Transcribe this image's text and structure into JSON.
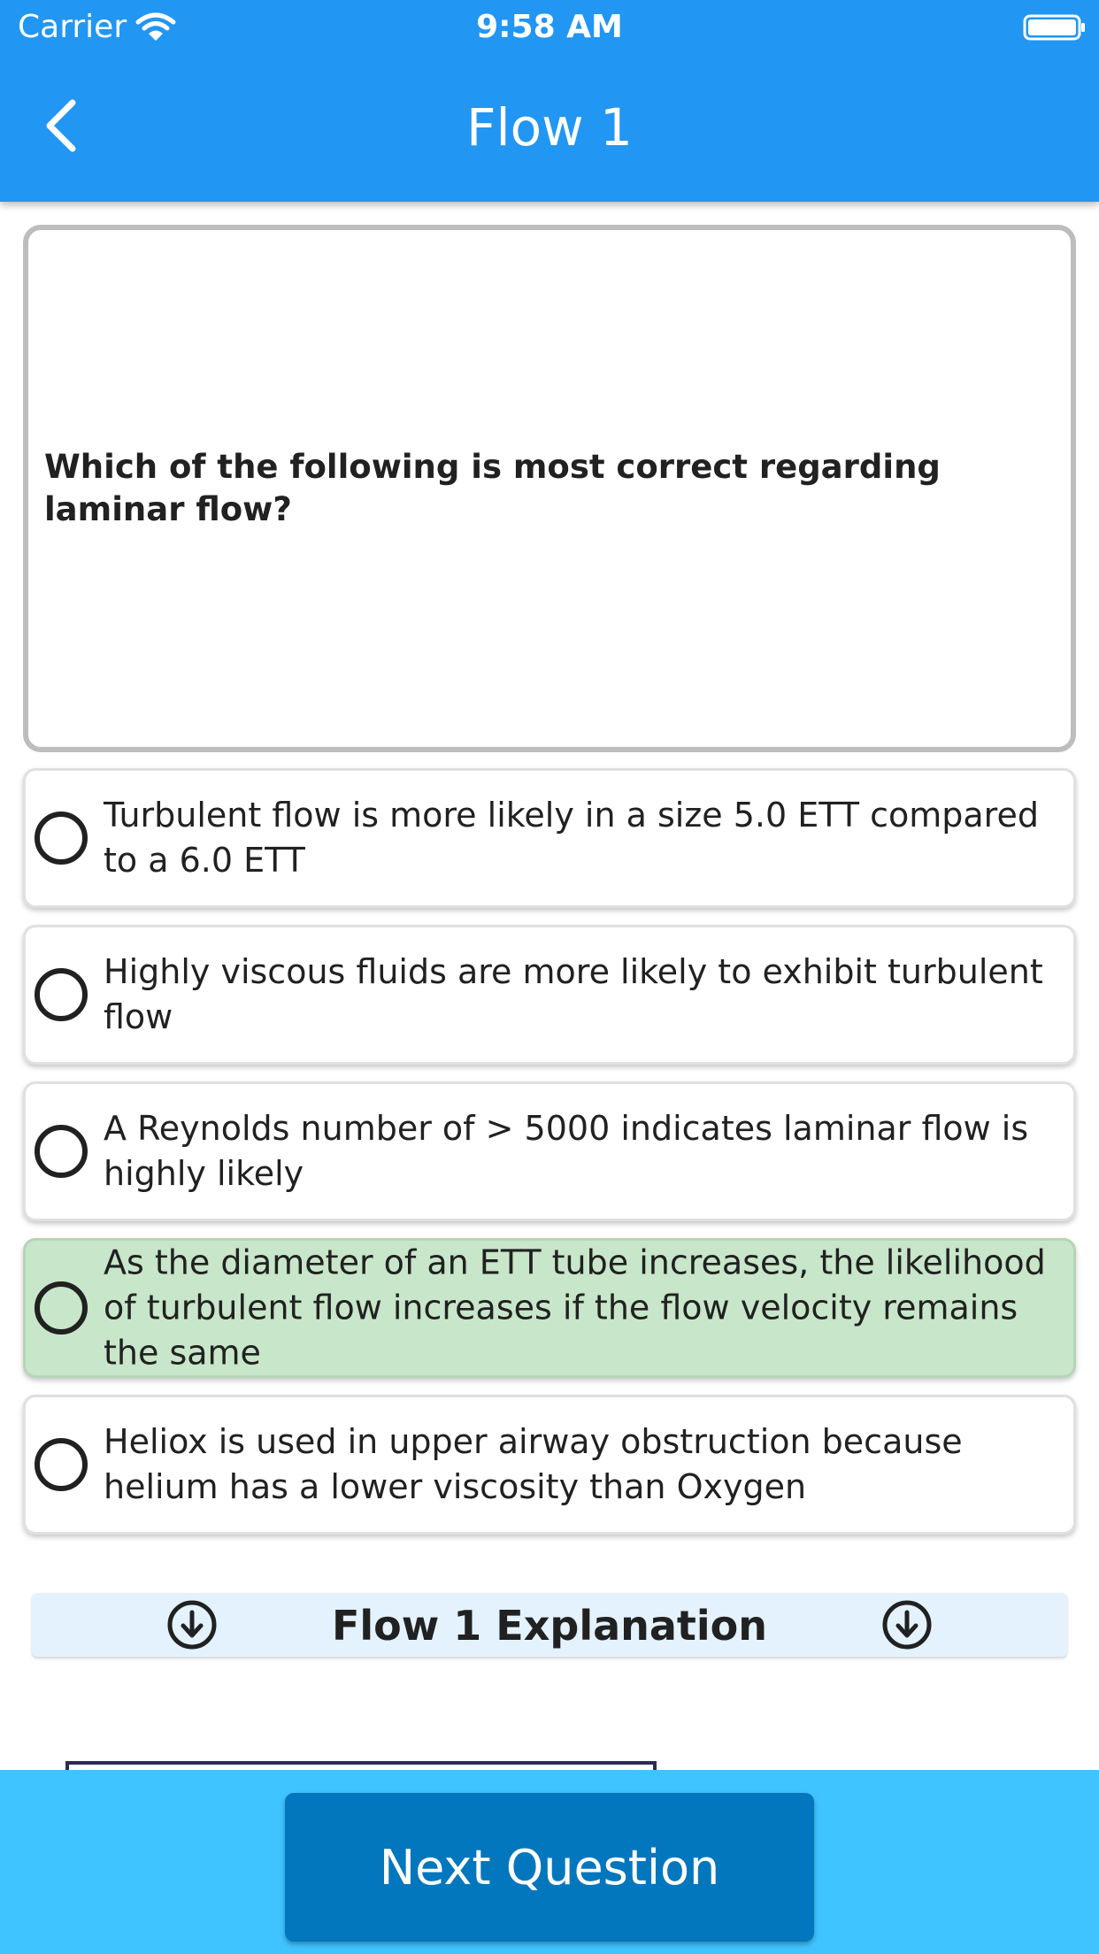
{
  "status_bar": {
    "carrier": "Carrier",
    "time": "9:58 AM"
  },
  "header": {
    "title": "Flow 1",
    "background_color": "#2196F3"
  },
  "question": {
    "text": "Which of the following is most correct regarding laminar flow?"
  },
  "options": [
    {
      "text": "Turbulent flow is more likely in a size 5.0 ETT compared to a 6.0 ETT",
      "highlighted": false
    },
    {
      "text": "Highly viscous fluids are more likely to exhibit turbulent flow",
      "highlighted": false
    },
    {
      "text": "A Reynolds number of > 5000 indicates laminar flow is highly likely",
      "highlighted": false
    },
    {
      "text": "As the diameter of an ETT tube increases, the likelihood of turbulent flow increases if the flow velocity remains the same",
      "highlighted": true
    },
    {
      "text": "Heliox is used in upper airway obstruction because helium has a lower viscosity than Oxygen",
      "highlighted": false
    }
  ],
  "explanation": {
    "title": "Flow 1 Explanation"
  },
  "footer": {
    "next_label": "Next Question",
    "bar_color": "#40C4FF",
    "button_color": "#0277BD"
  },
  "colors": {
    "highlight": "#C8E6C9",
    "explanation_bg": "#E3F2FD"
  },
  "icons": {
    "back": "chevron-left-icon",
    "wifi": "wifi-icon",
    "battery": "battery-icon",
    "expand": "arrow-down-circle-icon"
  }
}
